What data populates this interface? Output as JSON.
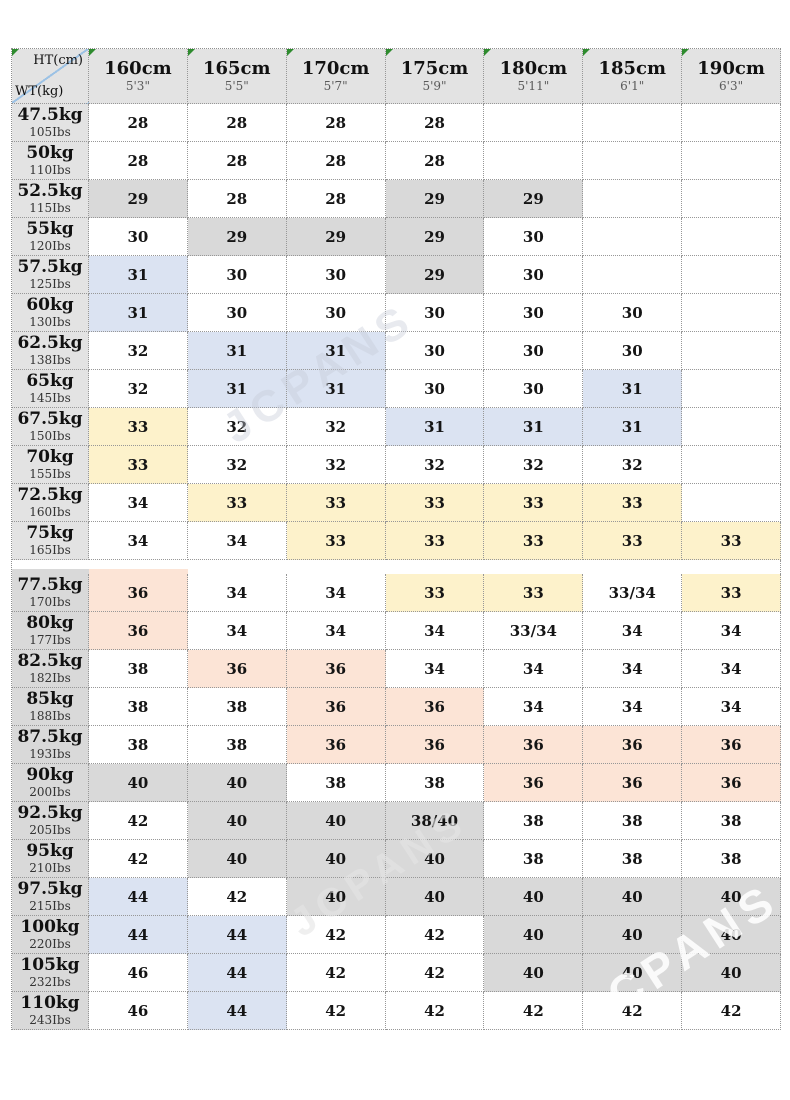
{
  "watermark_text": "JCPANS",
  "colors": {
    "white": "#ffffff",
    "gray": "#d9d9d9",
    "blue": "#dbe3f2",
    "yellow": "#fdf2cb",
    "pink": "#fce4d6",
    "header_gray": "#e3e3e3",
    "diagonal_line": "#9cc2e5",
    "green_mark": "#2e8b2e"
  },
  "chart_data": {
    "type": "table",
    "title": "Height / Weight to jeans waist size chart",
    "corner": {
      "top": "HT(cm)",
      "bottom": "WT(kg)"
    },
    "columns": [
      {
        "cm": "160cm",
        "ft": "5'3\""
      },
      {
        "cm": "165cm",
        "ft": "5'5\""
      },
      {
        "cm": "170cm",
        "ft": "5'7\""
      },
      {
        "cm": "175cm",
        "ft": "5'9\""
      },
      {
        "cm": "180cm",
        "ft": "5'11\""
      },
      {
        "cm": "185cm",
        "ft": "6'1\""
      },
      {
        "cm": "190cm",
        "ft": "6'3\""
      }
    ],
    "sections": [
      {
        "name": "upper",
        "rows": [
          {
            "kg": "47.5kg",
            "lbs": "105Ibs",
            "cells": [
              {
                "v": "28",
                "bg": "white"
              },
              {
                "v": "28",
                "bg": "white"
              },
              {
                "v": "28",
                "bg": "white"
              },
              {
                "v": "28",
                "bg": "white"
              },
              {
                "v": "",
                "bg": "white"
              },
              {
                "v": "",
                "bg": "white"
              },
              {
                "v": "",
                "bg": "white"
              }
            ]
          },
          {
            "kg": "50kg",
            "lbs": "110Ibs",
            "cells": [
              {
                "v": "28",
                "bg": "white"
              },
              {
                "v": "28",
                "bg": "white"
              },
              {
                "v": "28",
                "bg": "white"
              },
              {
                "v": "28",
                "bg": "white"
              },
              {
                "v": "",
                "bg": "white"
              },
              {
                "v": "",
                "bg": "white"
              },
              {
                "v": "",
                "bg": "white"
              }
            ]
          },
          {
            "kg": "52.5kg",
            "lbs": "115Ibs",
            "cells": [
              {
                "v": "29",
                "bg": "gray"
              },
              {
                "v": "28",
                "bg": "white"
              },
              {
                "v": "28",
                "bg": "white"
              },
              {
                "v": "29",
                "bg": "gray"
              },
              {
                "v": "29",
                "bg": "gray"
              },
              {
                "v": "",
                "bg": "white"
              },
              {
                "v": "",
                "bg": "white"
              }
            ]
          },
          {
            "kg": "55kg",
            "lbs": "120Ibs",
            "cells": [
              {
                "v": "30",
                "bg": "white"
              },
              {
                "v": "29",
                "bg": "gray"
              },
              {
                "v": "29",
                "bg": "gray"
              },
              {
                "v": "29",
                "bg": "gray"
              },
              {
                "v": "30",
                "bg": "white"
              },
              {
                "v": "",
                "bg": "white"
              },
              {
                "v": "",
                "bg": "white"
              }
            ]
          },
          {
            "kg": "57.5kg",
            "lbs": "125Ibs",
            "cells": [
              {
                "v": "31",
                "bg": "blue"
              },
              {
                "v": "30",
                "bg": "white"
              },
              {
                "v": "30",
                "bg": "white"
              },
              {
                "v": "29",
                "bg": "gray"
              },
              {
                "v": "30",
                "bg": "white"
              },
              {
                "v": "",
                "bg": "white"
              },
              {
                "v": "",
                "bg": "white"
              }
            ]
          },
          {
            "kg": "60kg",
            "lbs": "130Ibs",
            "cells": [
              {
                "v": "31",
                "bg": "blue"
              },
              {
                "v": "30",
                "bg": "white"
              },
              {
                "v": "30",
                "bg": "white"
              },
              {
                "v": "30",
                "bg": "white"
              },
              {
                "v": "30",
                "bg": "white"
              },
              {
                "v": "30",
                "bg": "white"
              },
              {
                "v": "",
                "bg": "white"
              }
            ]
          },
          {
            "kg": "62.5kg",
            "lbs": "138Ibs",
            "cells": [
              {
                "v": "32",
                "bg": "white"
              },
              {
                "v": "31",
                "bg": "blue"
              },
              {
                "v": "31",
                "bg": "blue"
              },
              {
                "v": "30",
                "bg": "white"
              },
              {
                "v": "30",
                "bg": "white"
              },
              {
                "v": "30",
                "bg": "white"
              },
              {
                "v": "",
                "bg": "white"
              }
            ]
          },
          {
            "kg": "65kg",
            "lbs": "145Ibs",
            "cells": [
              {
                "v": "32",
                "bg": "white"
              },
              {
                "v": "31",
                "bg": "blue"
              },
              {
                "v": "31",
                "bg": "blue"
              },
              {
                "v": "30",
                "bg": "white"
              },
              {
                "v": "30",
                "bg": "white"
              },
              {
                "v": "31",
                "bg": "blue"
              },
              {
                "v": "",
                "bg": "white"
              }
            ]
          },
          {
            "kg": "67.5kg",
            "lbs": "150Ibs",
            "cells": [
              {
                "v": "33",
                "bg": "yellow"
              },
              {
                "v": "32",
                "bg": "white"
              },
              {
                "v": "32",
                "bg": "white"
              },
              {
                "v": "31",
                "bg": "blue"
              },
              {
                "v": "31",
                "bg": "blue"
              },
              {
                "v": "31",
                "bg": "blue"
              },
              {
                "v": "",
                "bg": "white"
              }
            ]
          },
          {
            "kg": "70kg",
            "lbs": "155Ibs",
            "cells": [
              {
                "v": "33",
                "bg": "yellow"
              },
              {
                "v": "32",
                "bg": "white"
              },
              {
                "v": "32",
                "bg": "white"
              },
              {
                "v": "32",
                "bg": "white"
              },
              {
                "v": "32",
                "bg": "white"
              },
              {
                "v": "32",
                "bg": "white"
              },
              {
                "v": "",
                "bg": "white"
              }
            ]
          },
          {
            "kg": "72.5kg",
            "lbs": "160Ibs",
            "cells": [
              {
                "v": "34",
                "bg": "white"
              },
              {
                "v": "33",
                "bg": "yellow"
              },
              {
                "v": "33",
                "bg": "yellow"
              },
              {
                "v": "33",
                "bg": "yellow"
              },
              {
                "v": "33",
                "bg": "yellow"
              },
              {
                "v": "33",
                "bg": "yellow"
              },
              {
                "v": "",
                "bg": "white"
              }
            ]
          },
          {
            "kg": "75kg",
            "lbs": "165Ibs",
            "cells": [
              {
                "v": "34",
                "bg": "white"
              },
              {
                "v": "34",
                "bg": "white"
              },
              {
                "v": "33",
                "bg": "yellow"
              },
              {
                "v": "33",
                "bg": "yellow"
              },
              {
                "v": "33",
                "bg": "yellow"
              },
              {
                "v": "33",
                "bg": "yellow"
              },
              {
                "v": "33",
                "bg": "yellow"
              }
            ]
          }
        ]
      },
      {
        "name": "lower",
        "rows": [
          {
            "kg": "77.5kg",
            "lbs": "170Ibs",
            "cells": [
              {
                "v": "36",
                "bg": "pink"
              },
              {
                "v": "34",
                "bg": "white"
              },
              {
                "v": "34",
                "bg": "white"
              },
              {
                "v": "33",
                "bg": "yellow"
              },
              {
                "v": "33",
                "bg": "yellow"
              },
              {
                "v": "33/34",
                "bg": "white"
              },
              {
                "v": "33",
                "bg": "yellow"
              }
            ]
          },
          {
            "kg": "80kg",
            "lbs": "177Ibs",
            "cells": [
              {
                "v": "36",
                "bg": "pink"
              },
              {
                "v": "34",
                "bg": "white"
              },
              {
                "v": "34",
                "bg": "white"
              },
              {
                "v": "34",
                "bg": "white"
              },
              {
                "v": "33/34",
                "bg": "white"
              },
              {
                "v": "34",
                "bg": "white"
              },
              {
                "v": "34",
                "bg": "white"
              }
            ]
          },
          {
            "kg": "82.5kg",
            "lbs": "182Ibs",
            "cells": [
              {
                "v": "38",
                "bg": "white"
              },
              {
                "v": "36",
                "bg": "pink"
              },
              {
                "v": "36",
                "bg": "pink"
              },
              {
                "v": "34",
                "bg": "white"
              },
              {
                "v": "34",
                "bg": "white"
              },
              {
                "v": "34",
                "bg": "white"
              },
              {
                "v": "34",
                "bg": "white"
              }
            ]
          },
          {
            "kg": "85kg",
            "lbs": "188Ibs",
            "cells": [
              {
                "v": "38",
                "bg": "white"
              },
              {
                "v": "38",
                "bg": "white"
              },
              {
                "v": "36",
                "bg": "pink"
              },
              {
                "v": "36",
                "bg": "pink"
              },
              {
                "v": "34",
                "bg": "white"
              },
              {
                "v": "34",
                "bg": "white"
              },
              {
                "v": "34",
                "bg": "white"
              }
            ]
          },
          {
            "kg": "87.5kg",
            "lbs": "193Ibs",
            "cells": [
              {
                "v": "38",
                "bg": "white"
              },
              {
                "v": "38",
                "bg": "white"
              },
              {
                "v": "36",
                "bg": "pink"
              },
              {
                "v": "36",
                "bg": "pink"
              },
              {
                "v": "36",
                "bg": "pink"
              },
              {
                "v": "36",
                "bg": "pink"
              },
              {
                "v": "36",
                "bg": "pink"
              }
            ]
          },
          {
            "kg": "90kg",
            "lbs": "200Ibs",
            "cells": [
              {
                "v": "40",
                "bg": "gray"
              },
              {
                "v": "40",
                "bg": "gray"
              },
              {
                "v": "38",
                "bg": "white"
              },
              {
                "v": "38",
                "bg": "white"
              },
              {
                "v": "36",
                "bg": "pink"
              },
              {
                "v": "36",
                "bg": "pink"
              },
              {
                "v": "36",
                "bg": "pink"
              }
            ]
          },
          {
            "kg": "92.5kg",
            "lbs": "205Ibs",
            "cells": [
              {
                "v": "42",
                "bg": "white"
              },
              {
                "v": "40",
                "bg": "gray"
              },
              {
                "v": "40",
                "bg": "gray"
              },
              {
                "v": "38/40",
                "bg": "gray"
              },
              {
                "v": "38",
                "bg": "white"
              },
              {
                "v": "38",
                "bg": "white"
              },
              {
                "v": "38",
                "bg": "white"
              }
            ]
          },
          {
            "kg": "95kg",
            "lbs": "210Ibs",
            "cells": [
              {
                "v": "42",
                "bg": "white"
              },
              {
                "v": "40",
                "bg": "gray"
              },
              {
                "v": "40",
                "bg": "gray"
              },
              {
                "v": "40",
                "bg": "gray"
              },
              {
                "v": "38",
                "bg": "white"
              },
              {
                "v": "38",
                "bg": "white"
              },
              {
                "v": "38",
                "bg": "white"
              }
            ]
          },
          {
            "kg": "97.5kg",
            "lbs": "215Ibs",
            "cells": [
              {
                "v": "44",
                "bg": "blue"
              },
              {
                "v": "42",
                "bg": "white"
              },
              {
                "v": "40",
                "bg": "gray"
              },
              {
                "v": "40",
                "bg": "gray"
              },
              {
                "v": "40",
                "bg": "gray"
              },
              {
                "v": "40",
                "bg": "gray"
              },
              {
                "v": "40",
                "bg": "gray"
              }
            ]
          },
          {
            "kg": "100kg",
            "lbs": "220Ibs",
            "cells": [
              {
                "v": "44",
                "bg": "blue"
              },
              {
                "v": "44",
                "bg": "blue"
              },
              {
                "v": "42",
                "bg": "white"
              },
              {
                "v": "42",
                "bg": "white"
              },
              {
                "v": "40",
                "bg": "gray"
              },
              {
                "v": "40",
                "bg": "gray"
              },
              {
                "v": "40",
                "bg": "gray"
              }
            ]
          },
          {
            "kg": "105kg",
            "lbs": "232Ibs",
            "cells": [
              {
                "v": "46",
                "bg": "white"
              },
              {
                "v": "44",
                "bg": "blue"
              },
              {
                "v": "42",
                "bg": "white"
              },
              {
                "v": "42",
                "bg": "white"
              },
              {
                "v": "40",
                "bg": "gray"
              },
              {
                "v": "40",
                "bg": "gray"
              },
              {
                "v": "40",
                "bg": "gray"
              }
            ]
          },
          {
            "kg": "110kg",
            "lbs": "243Ibs",
            "cells": [
              {
                "v": "46",
                "bg": "white"
              },
              {
                "v": "44",
                "bg": "blue"
              },
              {
                "v": "42",
                "bg": "white"
              },
              {
                "v": "42",
                "bg": "white"
              },
              {
                "v": "42",
                "bg": "white"
              },
              {
                "v": "42",
                "bg": "white"
              },
              {
                "v": "42",
                "bg": "white"
              }
            ]
          }
        ]
      }
    ]
  }
}
